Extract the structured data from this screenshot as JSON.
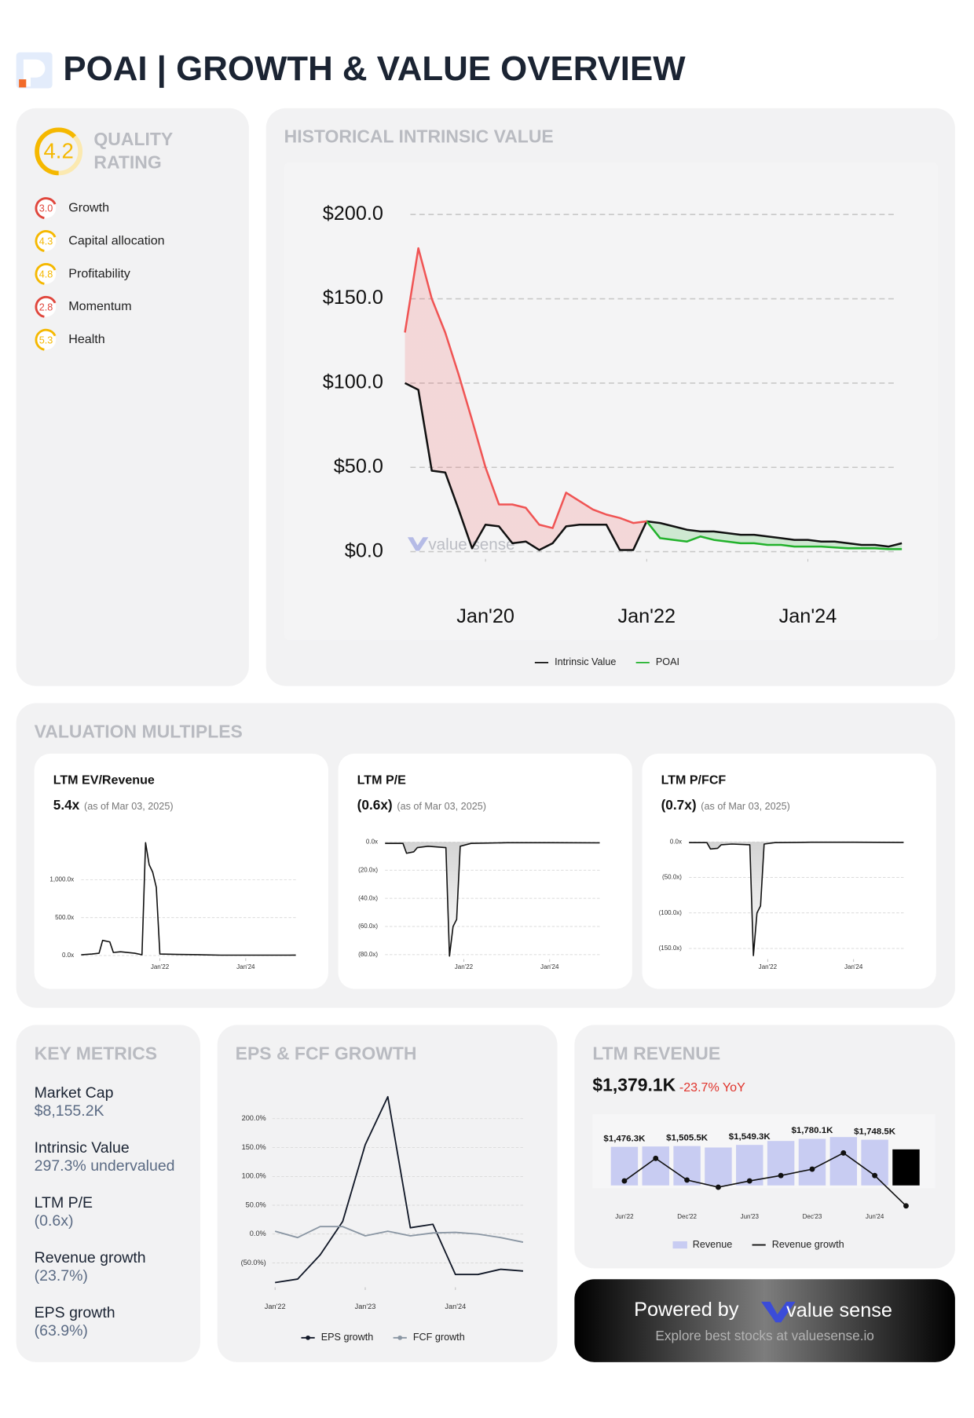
{
  "header": {
    "title": "POAI | GROWTH & VALUE OVERVIEW"
  },
  "quality": {
    "score": "4.2",
    "title": "QUALITY RATING",
    "items": [
      {
        "score": "3.0",
        "name": "Growth",
        "color": "#e0463c"
      },
      {
        "score": "4.3",
        "name": "Capital allocation",
        "color": "#f5b800"
      },
      {
        "score": "4.8",
        "name": "Profitability",
        "color": "#f5b800"
      },
      {
        "score": "2.8",
        "name": "Momentum",
        "color": "#e0463c"
      },
      {
        "score": "5.3",
        "name": "Health",
        "color": "#f5b800"
      }
    ]
  },
  "valuation": {
    "title": "VALUATION MULTIPLES"
  },
  "key_metrics": {
    "title": "KEY METRICS",
    "items": [
      {
        "label": "Market Cap",
        "value": "$8,155.2K"
      },
      {
        "label": "Intrinsic Value",
        "value": "297.3% undervalued"
      },
      {
        "label": "LTM P/E",
        "value": "(0.6x)"
      },
      {
        "label": "Revenue growth",
        "value": "(23.7%)"
      },
      {
        "label": "EPS growth",
        "value": "(63.9%)"
      }
    ]
  },
  "footer": {
    "powered": "Powered by",
    "brand": "value sense",
    "tagline": "Explore best stocks at valuesense.io"
  },
  "chart_data": [
    {
      "type": "line",
      "title": "HISTORICAL INTRINSIC VALUE",
      "watermark": "value sense",
      "x": [
        "2019-01",
        "2019-03",
        "2019-05",
        "2019-07",
        "2019-09",
        "2019-11",
        "2020-01",
        "2020-03",
        "2020-05",
        "2020-07",
        "2020-09",
        "2020-11",
        "2021-01",
        "2021-03",
        "2021-05",
        "2021-07",
        "2021-09",
        "2021-11",
        "2022-01",
        "2022-03",
        "2022-05",
        "2022-07",
        "2022-09",
        "2022-11",
        "2023-01",
        "2023-03",
        "2023-05",
        "2023-07",
        "2023-09",
        "2023-11",
        "2024-01",
        "2024-03",
        "2024-05",
        "2024-07",
        "2024-09",
        "2024-11",
        "2025-01",
        "2025-03"
      ],
      "xlim": [
        "2019-01",
        "2025-03"
      ],
      "xticks": [
        {
          "value": "2020-01",
          "label": "Jan'20"
        },
        {
          "value": "2022-01",
          "label": "Jan'22"
        },
        {
          "value": "2024-01",
          "label": "Jan'24"
        }
      ],
      "ylim": [
        -4.3,
        220.3
      ],
      "yticks": [
        {
          "value": 0,
          "label": "$0.0"
        },
        {
          "value": 50,
          "label": "$50.0"
        },
        {
          "value": 100,
          "label": "$100.0"
        },
        {
          "value": 150,
          "label": "$150.0"
        },
        {
          "value": 200,
          "label": "$200.0"
        }
      ],
      "grid": true,
      "series": [
        {
          "name": "Intrinsic Value",
          "color": "#111111",
          "values": [
            100,
            96,
            48,
            47,
            25,
            2,
            16,
            15,
            5,
            6,
            1,
            5,
            15,
            16,
            16,
            16,
            1,
            1,
            18,
            17,
            15,
            13,
            12,
            12,
            11,
            10,
            10,
            9,
            8,
            7,
            7,
            6,
            6,
            5,
            4,
            4,
            3,
            5
          ]
        },
        {
          "name": "POAI",
          "color": "#22b22c",
          "above_color": "#f05454",
          "values": [
            130,
            180,
            150,
            130,
            105,
            78,
            50,
            28,
            28,
            26,
            16,
            14,
            35,
            30,
            25,
            22,
            20,
            17,
            18,
            8,
            7,
            6,
            9,
            7,
            6,
            5,
            5,
            4,
            4,
            3,
            3,
            3,
            2.5,
            2,
            2,
            2,
            1.5,
            1.5
          ]
        }
      ]
    },
    {
      "type": "line",
      "title": "LTM EV/Revenue",
      "headline": "5.4x",
      "note": "(as of Mar 03, 2025)",
      "color": "#111111",
      "area": false,
      "x": [
        "2020-03",
        "2020-06",
        "2020-08",
        "2020-09",
        "2020-11",
        "2020-12",
        "2021-02",
        "2021-06",
        "2021-08",
        "2021-09",
        "2021-10",
        "2021-11",
        "2021-12",
        "2022-01",
        "2022-06",
        "2023-01",
        "2023-06",
        "2024-01",
        "2024-06",
        "2025-01",
        "2025-03"
      ],
      "values": [
        10,
        20,
        30,
        200,
        180,
        40,
        50,
        30,
        10,
        1490,
        1200,
        1100,
        900,
        20,
        15,
        10,
        5,
        5,
        5,
        5,
        5.4
      ],
      "xlim": [
        "2020-03",
        "2025-03"
      ],
      "xticks": [
        {
          "value": "2022-01",
          "label": "Jan'22"
        },
        {
          "value": "2024-01",
          "label": "Jan'24"
        }
      ],
      "ylim": [
        -36,
        1607
      ],
      "yticks": [
        {
          "value": 0,
          "label": "0.0x"
        },
        {
          "value": 500,
          "label": "500.0x"
        },
        {
          "value": 1000,
          "label": "1,000.0x"
        }
      ],
      "grid": true
    },
    {
      "type": "line",
      "title": "LTM P/E",
      "headline": "(0.6x)",
      "note": "(as of Mar 03, 2025)",
      "color": "#111111",
      "area": true,
      "x": [
        "2020-03",
        "2020-08",
        "2020-09",
        "2020-11",
        "2020-12",
        "2021-03",
        "2021-08",
        "2021-09",
        "2021-10",
        "2021-11",
        "2021-12",
        "2022-03",
        "2023-01",
        "2024-01",
        "2025-03"
      ],
      "values": [
        -1,
        -1,
        -8,
        -7,
        -4,
        -3,
        -4,
        -81,
        -60,
        -55,
        -3,
        -1,
        -0.5,
        -0.5,
        -0.6
      ],
      "xlim": [
        "2020-03",
        "2025-03"
      ],
      "xticks": [
        {
          "value": "2022-01",
          "label": "Jan'22"
        },
        {
          "value": "2024-01",
          "label": "Jan'24"
        }
      ],
      "ylim": [
        -83.2,
        2.6
      ],
      "yticks": [
        {
          "value": 0,
          "label": "0.0x"
        },
        {
          "value": -20,
          "label": "(20.0x)"
        },
        {
          "value": -40,
          "label": "(40.0x)"
        },
        {
          "value": -60,
          "label": "(60.0x)"
        },
        {
          "value": -80,
          "label": "(80.0x)"
        }
      ],
      "grid": true
    },
    {
      "type": "line",
      "title": "LTM P/FCF",
      "headline": "(0.7x)",
      "note": "(as of Mar 03, 2025)",
      "color": "#111111",
      "area": true,
      "x": [
        "2020-03",
        "2020-08",
        "2020-09",
        "2020-11",
        "2020-12",
        "2021-03",
        "2021-08",
        "2021-09",
        "2021-10",
        "2021-11",
        "2021-12",
        "2022-03",
        "2023-01",
        "2024-01",
        "2025-03"
      ],
      "values": [
        -1,
        -1,
        -10,
        -9,
        -4,
        -3,
        -4,
        -160,
        -100,
        -90,
        -3,
        -1,
        -0.5,
        -0.5,
        -0.7
      ],
      "xlim": [
        "2020-03",
        "2025-03"
      ],
      "xticks": [
        {
          "value": "2022-01",
          "label": "Jan'22"
        },
        {
          "value": "2024-01",
          "label": "Jan'24"
        }
      ],
      "ylim": [
        -165,
        5
      ],
      "yticks": [
        {
          "value": 0,
          "label": "0.0x"
        },
        {
          "value": -50,
          "label": "(50.0x)"
        },
        {
          "value": -100,
          "label": "(100.0x)"
        },
        {
          "value": -150,
          "label": "(150.0x)"
        }
      ],
      "grid": true
    },
    {
      "type": "line",
      "title": "EPS & FCF GROWTH",
      "x": [
        "2022-01",
        "2022-04",
        "2022-07",
        "2022-10",
        "2023-01",
        "2023-04",
        "2023-07",
        "2023-10",
        "2024-01",
        "2024-04",
        "2024-07",
        "2024-10"
      ],
      "xlim": [
        "2022-01",
        "2024-10"
      ],
      "xticks": [
        {
          "value": "2022-01",
          "label": "Jan'22"
        },
        {
          "value": "2023-01",
          "label": "Jan'23"
        },
        {
          "value": "2024-01",
          "label": "Jan'24"
        }
      ],
      "ylim": [
        -92.2,
        240.6
      ],
      "yticks": [
        {
          "value": -50,
          "label": "(50.0%)"
        },
        {
          "value": 0,
          "label": "0.0%"
        },
        {
          "value": 50,
          "label": "50.0%"
        },
        {
          "value": 100,
          "label": "100.0%"
        },
        {
          "value": 150,
          "label": "150.0%"
        },
        {
          "value": 200,
          "label": "200.0%"
        }
      ],
      "grid": true,
      "series": [
        {
          "name": "EPS growth",
          "color": "#111827",
          "values": [
            -84,
            -78,
            -36,
            22,
            155,
            238,
            11,
            17,
            -70,
            -70,
            -61,
            -64
          ]
        },
        {
          "name": "FCF growth",
          "color": "#8a96a3",
          "values": [
            5,
            -6,
            13,
            13,
            -3,
            5,
            -3,
            2,
            3,
            0,
            -6,
            -14
          ]
        }
      ]
    },
    {
      "type": "bar",
      "title": "LTM REVENUE",
      "headline": "$1,379.1K",
      "change": "-23.7% YoY",
      "categories": [
        "Jun'22",
        null,
        "Dec'22",
        null,
        "Jun'23",
        null,
        "Dec'23",
        null,
        "Jun'24",
        null
      ],
      "ylim": [
        0,
        2586
      ],
      "y2lim": [
        -31,
        74
      ],
      "series": [
        {
          "name": "Revenue",
          "color": "#c8ccf2",
          "last_color": "#000000",
          "values": [
            1476.3,
            1490,
            1505.5,
            1450,
            1549.3,
            1700,
            1780.1,
            1850,
            1748.5,
            1379.1
          ],
          "value_labels": [
            "$1,476.3K",
            null,
            "$1,505.5K",
            null,
            "$1,549.3K",
            null,
            "$1,780.1K",
            null,
            "$1,748.5K",
            null
          ]
        },
        {
          "name": "Revenue growth",
          "color": "#111111",
          "axis": "y2",
          "values": [
            4,
            29,
            5,
            -3,
            4,
            10,
            17,
            35,
            10,
            -23.7
          ]
        }
      ]
    }
  ]
}
